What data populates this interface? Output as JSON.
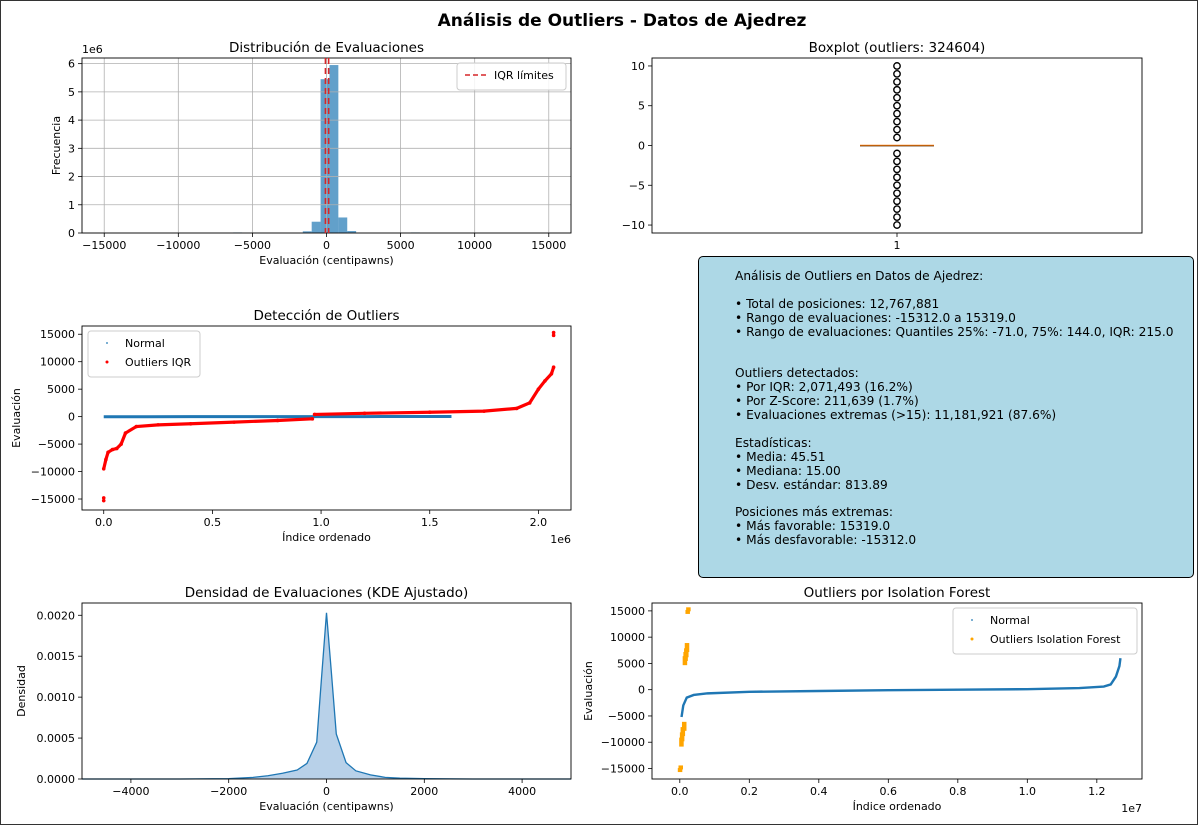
{
  "figure_title": "Análisis de Outliers - Datos de Ajedrez",
  "colors": {
    "normal": "#1f77b4",
    "hist_bar": "#1f77b4",
    "iqr_outlier": "#ff0000",
    "iso_outlier": "#ffa500",
    "iqr_line": "#d62728",
    "median_line": "#ff7f0e",
    "kde_fill": "#a6c5e3",
    "info_bg": "#add8e6"
  },
  "info_box": {
    "lines": [
      "Análisis de Outliers en Datos de Ajedrez:",
      "",
      "• Total de posiciones: 12,767,881",
      "• Rango de evaluaciones: -15312.0 a 15319.0",
      "• Rango de evaluaciones: Quantiles 25%: -71.0, 75%: 144.0, IQR: 215.0",
      "",
      "",
      "Outliers detectados:",
      "• Por IQR: 2,071,493 (16.2%)",
      "• Por Z-Score: 211,639 (1.7%)",
      "• Evaluaciones extremas (>15): 11,181,921 (87.6%)",
      "",
      "Estadísticas:",
      "• Media: 45.51",
      "• Mediana: 15.00",
      "• Desv. estándar: 813.89",
      "",
      "Posiciones más extremas:",
      "• Más favorable: 15319.0",
      "• Más desfavorable: -15312.0"
    ]
  },
  "chart_data": [
    {
      "type": "bar",
      "subtype": "histogram",
      "title": "Distribución de Evaluaciones",
      "xlabel": "Evaluación (centipawns)",
      "ylabel": "Frecuencia",
      "y_multiplier_label": "1e6",
      "xlim": [
        -16500,
        16500
      ],
      "ylim": [
        0,
        6.2
      ],
      "grid": true,
      "xticks": [
        -15000,
        -10000,
        -5000,
        0,
        5000,
        10000,
        15000
      ],
      "yticks": [
        0,
        1,
        2,
        3,
        4,
        5,
        6
      ],
      "bins": [
        {
          "x0": -15312,
          "x1": -14700,
          "value": 0.003
        },
        {
          "x0": -6300,
          "x1": -5700,
          "value": 0.02
        },
        {
          "x0": -1600,
          "x1": -1000,
          "value": 0.06
        },
        {
          "x0": -1000,
          "x1": -400,
          "value": 0.4
        },
        {
          "x0": -400,
          "x1": 200,
          "value": 5.45
        },
        {
          "x0": 200,
          "x1": 800,
          "value": 5.95
        },
        {
          "x0": 800,
          "x1": 1400,
          "value": 0.55
        },
        {
          "x0": 1400,
          "x1": 2000,
          "value": 0.07
        },
        {
          "x0": 5700,
          "x1": 6300,
          "value": 0.02
        },
        {
          "x0": 14700,
          "x1": 15319,
          "value": 0.003
        }
      ],
      "vlines": [
        -71,
        144
      ],
      "legend": [
        {
          "label": "IQR límites"
        }
      ],
      "legend_position": "upper right"
    },
    {
      "type": "box",
      "title": "Boxplot (outliers: 324604)",
      "xticklabels": [
        "1"
      ],
      "ylim": [
        -11,
        11
      ],
      "yticks": [
        -10,
        -5,
        0,
        5,
        10
      ],
      "median": 0,
      "q1": 0,
      "q3": 0,
      "outliers": [
        10,
        9,
        8,
        7,
        6,
        5,
        4,
        3,
        2,
        1,
        -1,
        -2,
        -3,
        -4,
        -5,
        -6,
        -7,
        -8,
        -9,
        -10
      ]
    },
    {
      "type": "scatter",
      "title": "Detección de Outliers",
      "xlabel": "Índice ordenado",
      "ylabel": "Evaluación",
      "x_multiplier_label": "1e6",
      "xlim": [
        -0.1,
        2.15
      ],
      "ylim": [
        -17000,
        16500
      ],
      "xticks": [
        0.0,
        0.5,
        1.0,
        1.5,
        2.0
      ],
      "yticks": [
        -15000,
        -10000,
        -5000,
        0,
        5000,
        10000,
        15000
      ],
      "legend_position": "upper left",
      "series": [
        {
          "name": "Normal",
          "x": [
            0.0,
            0.2,
            0.4,
            0.6,
            0.8,
            1.0,
            1.2,
            1.4,
            1.6
          ],
          "y": [
            -20,
            -15,
            -10,
            -5,
            0,
            5,
            10,
            20,
            30
          ]
        },
        {
          "name": "Outliers IQR",
          "x": [
            0.0,
            0.0,
            0.0,
            0.01,
            0.02,
            0.04,
            0.06,
            0.08,
            0.1,
            0.15,
            0.25,
            0.4,
            0.6,
            0.8,
            0.96,
            0.97,
            1.2,
            1.5,
            1.75,
            1.9,
            1.96,
            2.0,
            2.03,
            2.06,
            2.07,
            2.07,
            2.07
          ],
          "y": [
            -15300,
            -14800,
            -9500,
            -7800,
            -6500,
            -6000,
            -5800,
            -5000,
            -3000,
            -1800,
            -1500,
            -1300,
            -1000,
            -700,
            -400,
            400,
            600,
            800,
            1000,
            1500,
            2500,
            5000,
            6500,
            7800,
            9000,
            14800,
            15300
          ]
        }
      ]
    },
    {
      "type": "area",
      "title": "Densidad de Evaluaciones (KDE Ajustado)",
      "xlabel": "Evaluación (centipawns)",
      "ylabel": "Densidad",
      "xlim": [
        -5000,
        5000
      ],
      "ylim": [
        0,
        0.00215
      ],
      "xticks": [
        -4000,
        -2000,
        0,
        2000,
        4000
      ],
      "yticks": [
        0.0,
        0.0005,
        0.001,
        0.0015,
        0.002
      ],
      "x": [
        -5000,
        -3000,
        -2000,
        -1500,
        -1200,
        -900,
        -600,
        -400,
        -200,
        -100,
        0,
        100,
        200,
        400,
        600,
        900,
        1200,
        1500,
        2000,
        3000,
        5000
      ],
      "y": [
        0.0,
        0.0,
        5e-06,
        2e-05,
        4e-05,
        7e-05,
        0.00011,
        0.00019,
        0.00045,
        0.00125,
        0.00203,
        0.0013,
        0.00055,
        0.0002,
        0.0001,
        5e-05,
        2e-05,
        1e-05,
        4e-06,
        0.0,
        0.0
      ]
    },
    {
      "type": "scatter",
      "title": "Outliers por Isolation Forest",
      "xlabel": "Índice ordenado",
      "ylabel": "Evaluación",
      "x_multiplier_label": "1e7",
      "xlim": [
        -0.08,
        1.33
      ],
      "ylim": [
        -17000,
        16500
      ],
      "xticks": [
        0.0,
        0.2,
        0.4,
        0.6,
        0.8,
        1.0,
        1.2
      ],
      "yticks": [
        -15000,
        -10000,
        -5000,
        0,
        5000,
        10000,
        15000
      ],
      "legend_position": "upper right",
      "series": [
        {
          "name": "Normal",
          "x": [
            0.005,
            0.01,
            0.02,
            0.04,
            0.08,
            0.2,
            0.4,
            0.6,
            0.8,
            1.0,
            1.15,
            1.22,
            1.24,
            1.255,
            1.265,
            1.268
          ],
          "y": [
            -5200,
            -3000,
            -1500,
            -1000,
            -700,
            -400,
            -250,
            -100,
            0,
            100,
            300,
            600,
            1000,
            2500,
            4500,
            6000
          ]
        },
        {
          "name": "Outliers Isolation Forest",
          "x": [
            0.0,
            0.002,
            0.004,
            0.006,
            0.008,
            0.012,
            0.014,
            0.016,
            0.018,
            0.02,
            0.022,
            0.024
          ],
          "y": [
            -15300,
            -14800,
            -9500,
            -8500,
            -7500,
            -6500,
            6000,
            6800,
            7500,
            8500,
            14800,
            15300
          ]
        }
      ]
    }
  ]
}
